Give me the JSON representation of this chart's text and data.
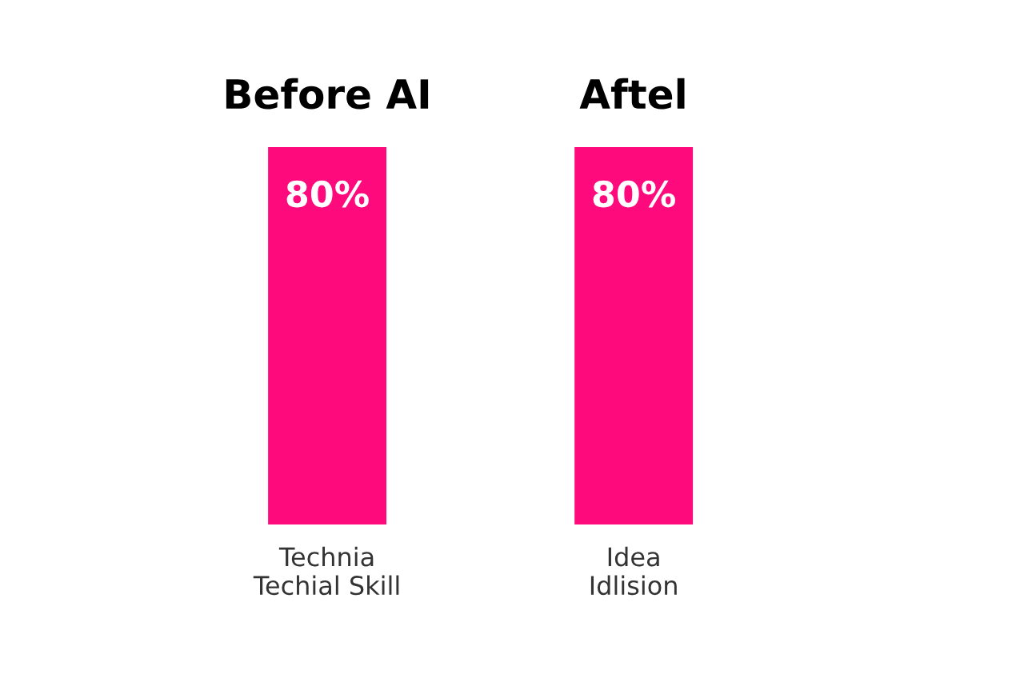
{
  "chart_data": {
    "type": "bar",
    "categories": [
      "Technia\nTechial Skill",
      "Idea\nIdlision"
    ],
    "values": [
      80,
      80
    ],
    "value_labels": [
      "80%",
      "80%"
    ],
    "color": "#ff0a7d",
    "annotations": [
      "Before AI",
      "Aftel"
    ]
  }
}
